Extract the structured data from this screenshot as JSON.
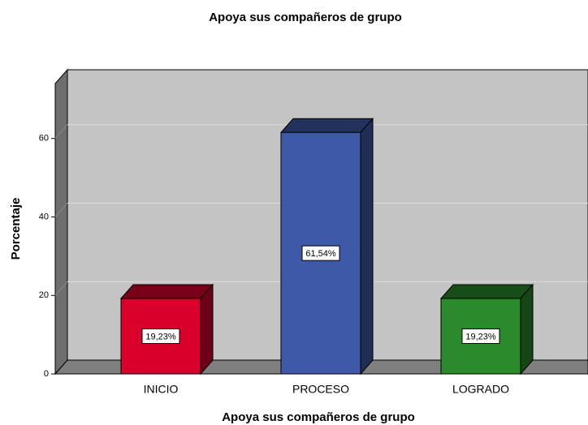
{
  "chart_data": {
    "type": "bar3d",
    "title": "Apoya sus compañeros de grupo",
    "x_label": "Apoya sus compañeros de grupo",
    "y_label": "Porcentaje",
    "categories": [
      "INICIO",
      "PROCESO",
      "LOGRADO"
    ],
    "values": [
      19.23,
      61.54,
      19.23
    ],
    "value_labels": [
      "19,23%",
      "61,54%",
      "19,23%"
    ],
    "colors": [
      "#d9002b",
      "#3f59a9",
      "#2b8a2b"
    ],
    "ylim": [
      0,
      74
    ],
    "yticks": [
      0,
      20,
      40,
      60
    ],
    "grid": true
  }
}
